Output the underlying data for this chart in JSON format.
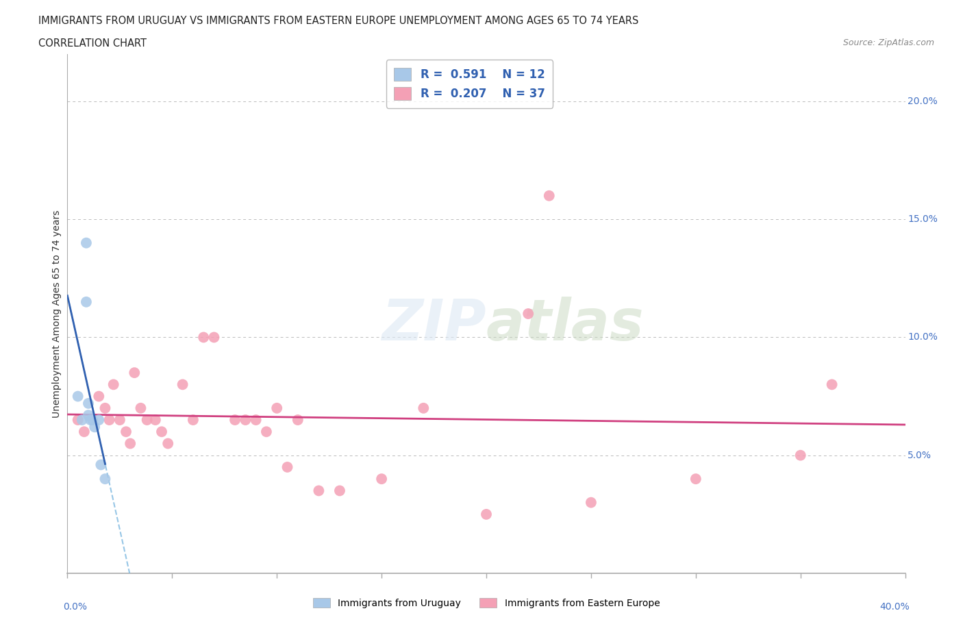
{
  "title_line1": "IMMIGRANTS FROM URUGUAY VS IMMIGRANTS FROM EASTERN EUROPE UNEMPLOYMENT AMONG AGES 65 TO 74 YEARS",
  "title_line2": "CORRELATION CHART",
  "source_text": "Source: ZipAtlas.com",
  "ylabel": "Unemployment Among Ages 65 to 74 years",
  "watermark": "ZIPatlas",
  "uruguay_r": "0.591",
  "uruguay_n": "12",
  "eastern_r": "0.207",
  "eastern_n": "37",
  "legend_label_uruguay": "Immigrants from Uruguay",
  "legend_label_eastern": "Immigrants from Eastern Europe",
  "uruguay_color": "#a8c8e8",
  "eastern_color": "#f4a0b5",
  "uruguay_trend_color": "#3060b0",
  "eastern_trend_color": "#d04080",
  "xlim": [
    0.0,
    0.4
  ],
  "ylim": [
    0.0,
    0.22
  ],
  "yticks": [
    0.05,
    0.1,
    0.15,
    0.2
  ],
  "ytick_labels": [
    "5.0%",
    "10.0%",
    "15.0%",
    "20.0%"
  ],
  "xticks": [
    0.0,
    0.05,
    0.1,
    0.15,
    0.2,
    0.25,
    0.3,
    0.35,
    0.4
  ],
  "uruguay_x": [
    0.005,
    0.007,
    0.009,
    0.009,
    0.01,
    0.01,
    0.011,
    0.012,
    0.013,
    0.015,
    0.016,
    0.018
  ],
  "uruguay_y": [
    0.075,
    0.065,
    0.14,
    0.115,
    0.072,
    0.067,
    0.065,
    0.065,
    0.062,
    0.065,
    0.046,
    0.04
  ],
  "eastern_x": [
    0.005,
    0.008,
    0.015,
    0.018,
    0.02,
    0.022,
    0.025,
    0.028,
    0.03,
    0.032,
    0.035,
    0.038,
    0.042,
    0.045,
    0.048,
    0.055,
    0.06,
    0.065,
    0.07,
    0.08,
    0.085,
    0.09,
    0.095,
    0.1,
    0.105,
    0.11,
    0.12,
    0.13,
    0.15,
    0.17,
    0.2,
    0.22,
    0.23,
    0.25,
    0.3,
    0.35,
    0.365
  ],
  "eastern_y": [
    0.065,
    0.06,
    0.075,
    0.07,
    0.065,
    0.08,
    0.065,
    0.06,
    0.055,
    0.085,
    0.07,
    0.065,
    0.065,
    0.06,
    0.055,
    0.08,
    0.065,
    0.1,
    0.1,
    0.065,
    0.065,
    0.065,
    0.06,
    0.07,
    0.045,
    0.065,
    0.035,
    0.035,
    0.04,
    0.07,
    0.025,
    0.11,
    0.16,
    0.03,
    0.04,
    0.05,
    0.08
  ],
  "background_color": "#ffffff",
  "grid_color": "#bbbbbb"
}
